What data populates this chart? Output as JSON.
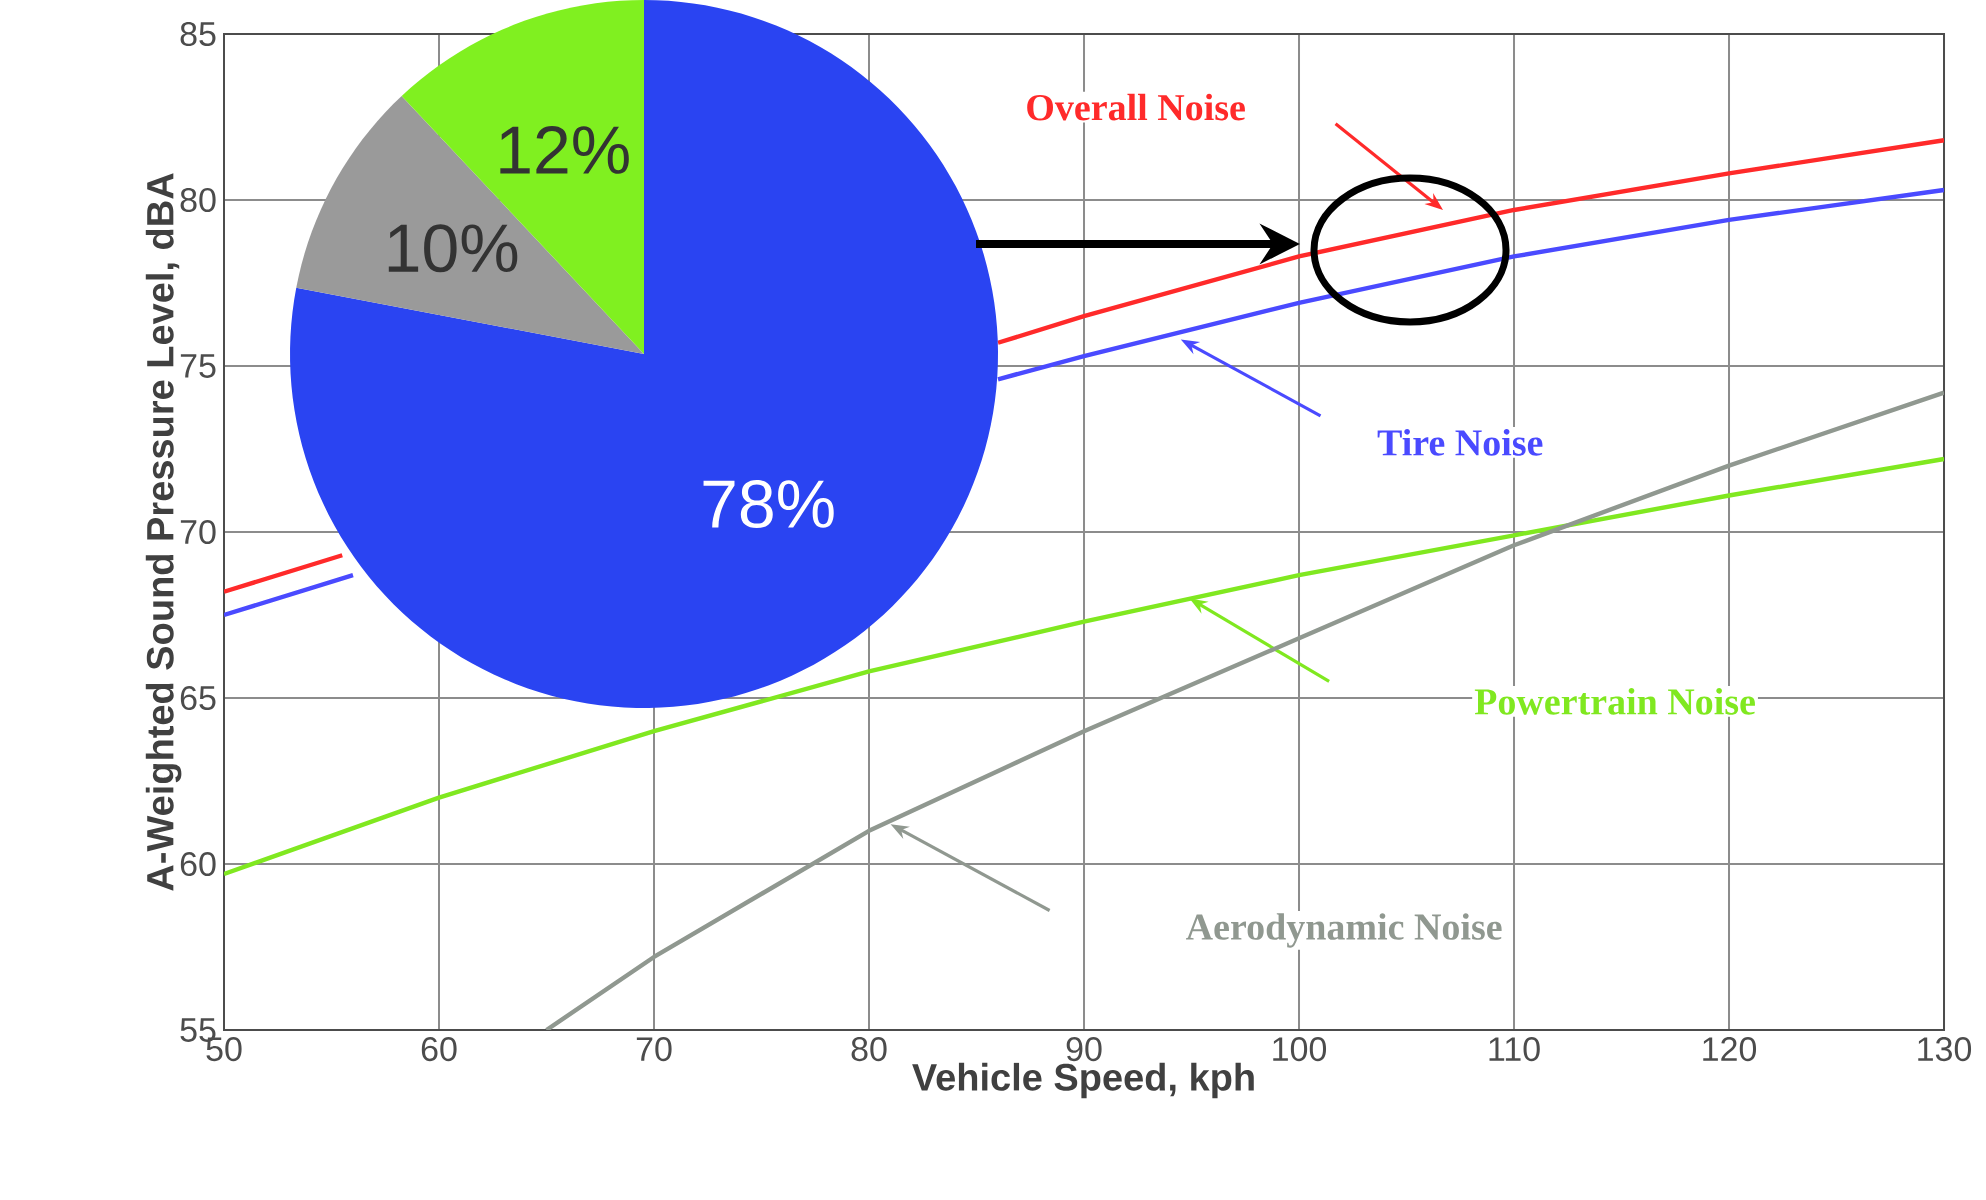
{
  "chart_data": [
    {
      "type": "line",
      "xlabel": "Vehicle Speed, kph",
      "ylabel": "A-Weighted Sound Pressure Level, dBA",
      "xlim": [
        50,
        130
      ],
      "ylim": [
        55,
        85
      ],
      "xticks": [
        50,
        60,
        70,
        80,
        90,
        100,
        110,
        120,
        130
      ],
      "yticks": [
        55,
        60,
        65,
        70,
        75,
        80,
        85
      ],
      "grid": true,
      "legend": false,
      "marker": "none",
      "line_style": "solid",
      "series": [
        {
          "name": "Overall Noise",
          "color": "#ff2a2a",
          "x": [
            50,
            55.5,
            60,
            70,
            80,
            86,
            90,
            100,
            110,
            120,
            130
          ],
          "values": [
            68.2,
            69.3,
            null,
            null,
            null,
            75.7,
            76.5,
            78.3,
            79.7,
            80.8,
            81.8
          ]
        },
        {
          "name": "Tire Noise",
          "color": "#4a4aff",
          "x": [
            50,
            56,
            60,
            70,
            80,
            86,
            90,
            100,
            110,
            120,
            130
          ],
          "values": [
            67.5,
            68.7,
            null,
            null,
            null,
            74.6,
            75.3,
            76.9,
            78.3,
            79.4,
            80.3
          ]
        },
        {
          "name": "Powertrain Noise",
          "color": "#80e820",
          "x": [
            50,
            60,
            70,
            80,
            90,
            100,
            110,
            120,
            130
          ],
          "values": [
            59.7,
            62.0,
            64.0,
            65.8,
            67.3,
            68.7,
            69.9,
            71.1,
            72.2
          ]
        },
        {
          "name": "Aerodynamic Noise",
          "color": "#909890",
          "x": [
            65,
            70,
            80,
            90,
            100,
            110,
            120,
            130
          ],
          "values": [
            55.0,
            57.2,
            61.0,
            64.0,
            66.8,
            69.6,
            72.0,
            74.2
          ]
        }
      ]
    },
    {
      "type": "pie",
      "categories": [
        null,
        null,
        null
      ],
      "values": [
        78,
        10,
        12
      ],
      "colors": [
        "#2a44f2",
        "#9a9a9a",
        "#80f020"
      ],
      "value_labels": [
        "78%",
        "10%",
        "12%"
      ]
    }
  ]
}
